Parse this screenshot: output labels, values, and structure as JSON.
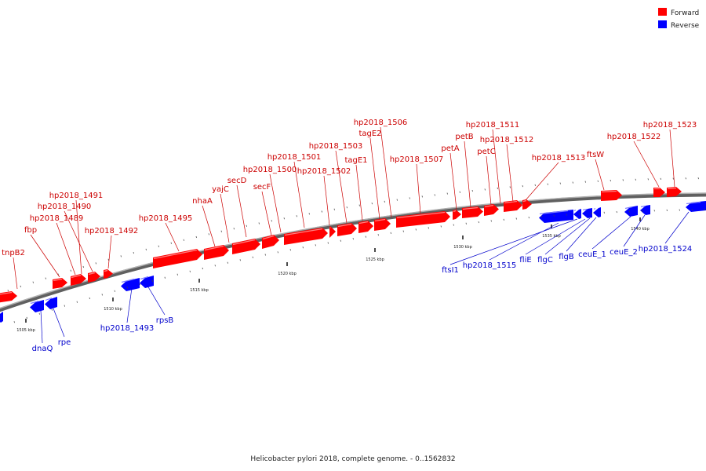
{
  "legend": {
    "forward_label": "Forward",
    "reverse_label": "Reverse",
    "forward_color": "#ff0000",
    "reverse_color": "#0000ff"
  },
  "caption": "Helicobacter pylori 2018, complete genome. - 0..1562832",
  "backbone_color": "#808080",
  "ticks": [
    "1505 kbp",
    "1510 kbp",
    "1515 kbp",
    "1520 kbp",
    "1525 kbp",
    "1530 kbp",
    "1535 kbp",
    "1540 kbp"
  ],
  "forward_labels": [
    "tnpB2",
    "fbp",
    "hp2018_1489",
    "hp2018_1490",
    "hp2018_1491",
    "hp2018_1492",
    "hp2018_1495",
    "nhaA",
    "yajC",
    "secD",
    "secF",
    "hp2018_1500",
    "hp2018_1501",
    "hp2018_1502",
    "hp2018_1503",
    "tagE1",
    "tagE2",
    "hp2018_1506",
    "hp2018_1507",
    "petA",
    "petB",
    "petC",
    "hp2018_1511",
    "hp2018_1512",
    "hp2018_1513",
    "ftsW",
    "hp2018_1522",
    "hp2018_1523"
  ],
  "reverse_labels": [
    "dnaQ",
    "rpe",
    "hp2018_1493",
    "rpsB",
    "ftsI1",
    "hp2018_1515",
    "fliE",
    "flgC",
    "flgB",
    "ceuE_1",
    "ceuE_2",
    "hp2018_1524"
  ]
}
